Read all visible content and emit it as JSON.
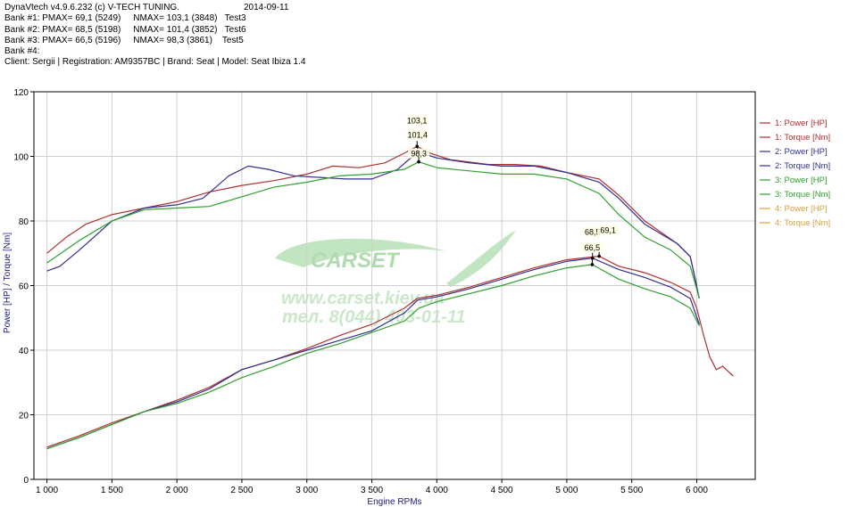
{
  "header": {
    "app_title": "DynaVtech v4.9.6.232 (c) V-TECH TUNING.",
    "date": "2014-09-11",
    "banks": [
      {
        "label": "Bank #1:",
        "pmax": "PMAX= 69,1 (5249)",
        "nmax": "NMAX= 103,1 (3848)",
        "test": "Test3"
      },
      {
        "label": "Bank #2:",
        "pmax": "PMAX= 68,5 (5198)",
        "nmax": "NMAX= 101,4 (3852)",
        "test": "Test6"
      },
      {
        "label": "Bank #3:",
        "pmax": "PMAX= 66,5 (5196)",
        "nmax": "NMAX= 98,3 (3861)",
        "test": "Test5"
      },
      {
        "label": "Bank #4:",
        "pmax": "",
        "nmax": "",
        "test": ""
      }
    ],
    "client_line": "Client: Sergii | Registration: AM9357BC | Brand: Seat | Model: Seat Ibiza 1.4"
  },
  "watermark": {
    "brand": "CARSET",
    "website": "www.carset.kiev.ua",
    "phone": "тел. 8(044) 403-01-11"
  },
  "chart_data": {
    "type": "line",
    "xlabel": "Engine RPMs",
    "ylabel": "Power [HP] / Torque [Nm]",
    "xlim": [
      900,
      6450
    ],
    "ylim": [
      0,
      120
    ],
    "xticks": [
      1000,
      1500,
      2000,
      2500,
      3000,
      3500,
      4000,
      4500,
      5000,
      5500,
      6000
    ],
    "xtick_labels": [
      "1 000",
      "1 500",
      "2 000",
      "2 500",
      "3 000",
      "3 500",
      "4 000",
      "4 500",
      "5 000",
      "5 500",
      "6 000"
    ],
    "yticks": [
      0,
      20,
      40,
      60,
      80,
      100,
      120
    ],
    "grid": true,
    "legend_position": "right",
    "legend": [
      {
        "name": "1: Power [HP]",
        "color": "#b03030"
      },
      {
        "name": "1: Torque [Nm]",
        "color": "#b03030"
      },
      {
        "name": "2: Power [HP]",
        "color": "#303090"
      },
      {
        "name": "2: Torque [Nm]",
        "color": "#303090"
      },
      {
        "name": "3: Power [HP]",
        "color": "#30a030"
      },
      {
        "name": "3: Torque [Nm]",
        "color": "#30a030"
      },
      {
        "name": "4: Power [HP]",
        "color": "#d8a040"
      },
      {
        "name": "4: Torque [Nm]",
        "color": "#d8a040"
      }
    ],
    "series": [
      {
        "name": "1: Power [HP]",
        "color": "#b03030",
        "x": [
          1000,
          1250,
          1500,
          1750,
          2000,
          2250,
          2500,
          2750,
          3000,
          3250,
          3500,
          3750,
          3848,
          4000,
          4250,
          4500,
          4750,
          5000,
          5249,
          5400,
          5600,
          5800,
          5950,
          6000,
          6050,
          6100,
          6150,
          6200,
          6280
        ],
        "y": [
          10,
          13.5,
          17.5,
          21,
          24.5,
          28.5,
          34,
          37,
          40.5,
          44.5,
          48,
          53,
          56,
          57,
          59.5,
          62.5,
          65.5,
          68,
          69.1,
          66,
          64,
          61,
          58,
          53,
          45,
          38,
          34,
          35,
          32
        ]
      },
      {
        "name": "1: Torque [Nm]",
        "color": "#b03030",
        "x": [
          1000,
          1150,
          1300,
          1500,
          1750,
          2000,
          2250,
          2500,
          2750,
          3000,
          3200,
          3400,
          3600,
          3750,
          3848,
          3950,
          4100,
          4400,
          4600,
          4800,
          5000,
          5250,
          5400,
          5600,
          5850,
          5950,
          6000
        ],
        "y": [
          70,
          75,
          79,
          82,
          84,
          86,
          89,
          91,
          92.5,
          94.5,
          97,
          96.5,
          98,
          101,
          103.1,
          101,
          99,
          97.5,
          97.5,
          97,
          95,
          93,
          88,
          80,
          73,
          69,
          60
        ]
      },
      {
        "name": "2: Power [HP]",
        "color": "#303090",
        "x": [
          1000,
          1250,
          1500,
          1750,
          2000,
          2250,
          2500,
          2750,
          3000,
          3250,
          3500,
          3750,
          3852,
          4000,
          4250,
          4500,
          4750,
          5000,
          5198,
          5400,
          5600,
          5800,
          5950,
          6020
        ],
        "y": [
          9.5,
          13,
          17,
          21,
          24,
          28,
          34,
          37,
          40,
          43,
          46,
          51.5,
          55.5,
          56.5,
          59,
          62,
          65,
          67.5,
          68.5,
          65,
          62.5,
          59.5,
          56,
          48
        ]
      },
      {
        "name": "2: Torque [Nm]",
        "color": "#303090",
        "x": [
          1000,
          1100,
          1250,
          1500,
          1750,
          2000,
          2200,
          2400,
          2550,
          2700,
          2900,
          3100,
          3300,
          3500,
          3700,
          3852,
          4000,
          4250,
          4500,
          4750,
          5000,
          5250,
          5400,
          5600,
          5850,
          5950,
          6020
        ],
        "y": [
          64.5,
          66,
          71,
          80,
          84,
          85,
          87,
          94,
          97,
          96,
          94,
          93.5,
          93,
          93,
          96,
          101.4,
          99.5,
          98,
          97,
          97,
          95,
          92,
          87,
          79,
          73,
          69,
          56
        ]
      },
      {
        "name": "3: Power [HP]",
        "color": "#30a030",
        "x": [
          1000,
          1250,
          1500,
          1750,
          2000,
          2250,
          2500,
          2750,
          3000,
          3250,
          3500,
          3750,
          3861,
          4000,
          4250,
          4500,
          4750,
          5000,
          5196,
          5400,
          5600,
          5800,
          5950,
          6020
        ],
        "y": [
          9.5,
          13,
          17,
          21,
          23.5,
          27,
          31.5,
          35,
          39,
          42,
          45.5,
          49,
          53,
          55,
          57.5,
          60,
          63,
          65.5,
          66.5,
          62,
          59,
          56.5,
          53,
          47.5
        ]
      },
      {
        "name": "3: Torque [Nm]",
        "color": "#30a030",
        "x": [
          1000,
          1250,
          1500,
          1750,
          2000,
          2250,
          2500,
          2750,
          3000,
          3250,
          3500,
          3750,
          3861,
          4000,
          4250,
          4500,
          4750,
          5000,
          5250,
          5400,
          5600,
          5800,
          5950,
          6020
        ],
        "y": [
          67,
          74,
          80,
          83.5,
          84,
          84.5,
          87.5,
          90.5,
          92,
          94,
          94.5,
          96,
          98.3,
          96.5,
          95.5,
          94.5,
          94.5,
          93,
          88.5,
          82,
          75,
          71,
          66,
          56
        ]
      }
    ],
    "annotations": [
      {
        "text": "103,1",
        "x": 3848,
        "y": 103.1
      },
      {
        "text": "101,4",
        "x": 3852,
        "y": 101.4
      },
      {
        "text": "98,3",
        "x": 3861,
        "y": 98.3
      },
      {
        "text": "68,5",
        "x": 5198,
        "y": 68.5
      },
      {
        "text": "69,1",
        "x": 5249,
        "y": 69.1
      },
      {
        "text": "66,5",
        "x": 5196,
        "y": 66.5
      }
    ]
  }
}
